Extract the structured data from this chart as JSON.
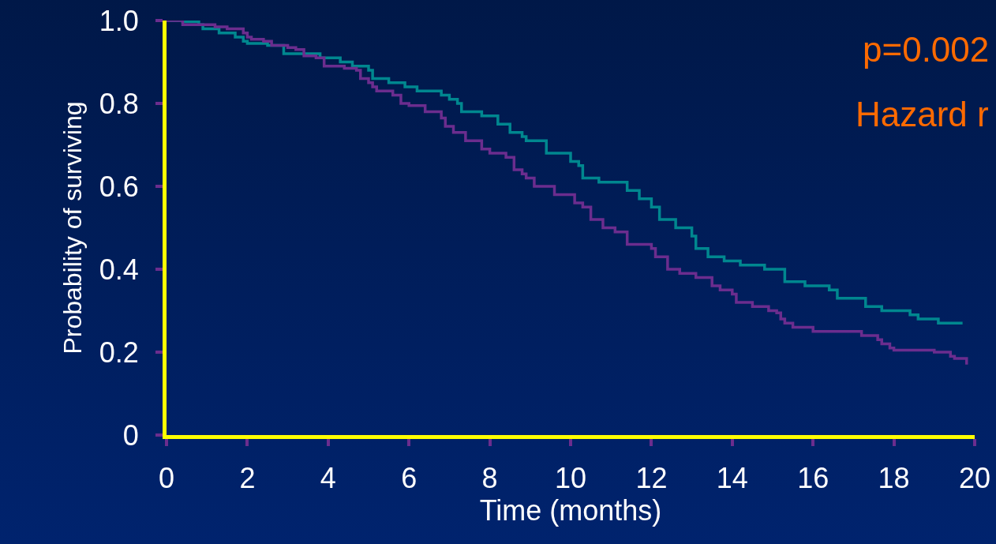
{
  "chart_data": {
    "type": "step",
    "xlabel": "Time (months)",
    "ylabel": "Probability of surviving",
    "annotations": [
      "p=0.002",
      "Hazard r"
    ],
    "xlim": [
      0,
      20
    ],
    "xticks": [
      0,
      2,
      4,
      6,
      8,
      10,
      12,
      14,
      16,
      18,
      20
    ],
    "ylim": [
      0,
      1
    ],
    "yticks": [
      0,
      0.2,
      0.4,
      0.6,
      {
        "value": 1,
        "label": "1.0"
      },
      0.8
    ],
    "grid": false,
    "marker": "none",
    "line_style": "solid",
    "series": [
      {
        "color": "#00878f",
        "x": [
          0,
          0.4,
          0.8,
          0.9,
          1.3,
          1.4,
          1.7,
          1.9,
          2.0,
          2.5,
          2.9,
          3.4,
          3.8,
          4.3,
          4.6,
          5.0,
          5.1,
          5.5,
          5.9,
          6.2,
          6.8,
          7.0,
          7.2,
          7.3,
          7.8,
          8.2,
          8.5,
          8.8,
          8.9,
          9.4,
          10.0,
          10.2,
          10.3,
          10.7,
          11.4,
          11.7,
          12.0,
          12.2,
          12.6,
          13.0,
          13.1,
          13.4,
          13.8,
          14.2,
          14.8,
          15.3,
          15.8,
          16.4,
          16.6,
          17.3,
          17.7,
          18.0,
          18.4,
          18.6,
          19.1,
          19.7
        ],
        "values": [
          1.0,
          0.997,
          0.99,
          0.98,
          0.97,
          0.97,
          0.96,
          0.95,
          0.945,
          0.94,
          0.92,
          0.92,
          0.91,
          0.9,
          0.89,
          0.88,
          0.86,
          0.85,
          0.84,
          0.83,
          0.82,
          0.81,
          0.8,
          0.78,
          0.77,
          0.75,
          0.73,
          0.72,
          0.71,
          0.68,
          0.66,
          0.65,
          0.62,
          0.61,
          0.59,
          0.57,
          0.55,
          0.52,
          0.5,
          0.48,
          0.45,
          0.43,
          0.42,
          0.41,
          0.4,
          0.37,
          0.36,
          0.35,
          0.33,
          0.31,
          0.3,
          0.3,
          0.29,
          0.28,
          0.27,
          0.27
        ]
      },
      {
        "color": "#6b2d8e",
        "x": [
          0,
          0.4,
          0.8,
          1.2,
          1.5,
          1.9,
          2.0,
          2.1,
          2.4,
          2.6,
          3.0,
          3.2,
          3.4,
          3.7,
          3.9,
          4.4,
          4.7,
          4.8,
          5.0,
          5.1,
          5.2,
          5.6,
          5.8,
          6.0,
          6.4,
          6.8,
          6.9,
          7.1,
          7.4,
          7.8,
          8.0,
          8.4,
          8.6,
          8.8,
          8.9,
          9.1,
          9.6,
          10.1,
          10.3,
          10.5,
          10.8,
          11.1,
          11.4,
          12.0,
          12.1,
          12.4,
          12.7,
          13.1,
          13.5,
          13.7,
          14.0,
          14.1,
          14.5,
          14.9,
          15.1,
          15.2,
          15.3,
          15.5,
          16.0,
          17.2,
          17.6,
          17.7,
          17.9,
          18.0,
          19.0,
          19.4,
          19.5,
          19.8
        ],
        "values": [
          1.0,
          0.99,
          0.99,
          0.985,
          0.98,
          0.97,
          0.96,
          0.955,
          0.95,
          0.94,
          0.935,
          0.93,
          0.915,
          0.91,
          0.89,
          0.885,
          0.88,
          0.86,
          0.85,
          0.84,
          0.83,
          0.82,
          0.8,
          0.795,
          0.78,
          0.765,
          0.745,
          0.73,
          0.71,
          0.69,
          0.68,
          0.67,
          0.64,
          0.63,
          0.62,
          0.6,
          0.58,
          0.56,
          0.55,
          0.52,
          0.5,
          0.49,
          0.46,
          0.45,
          0.43,
          0.4,
          0.39,
          0.38,
          0.36,
          0.35,
          0.34,
          0.32,
          0.31,
          0.3,
          0.295,
          0.28,
          0.27,
          0.26,
          0.25,
          0.24,
          0.23,
          0.22,
          0.21,
          0.205,
          0.2,
          0.19,
          0.185,
          0.17
        ]
      }
    ]
  }
}
